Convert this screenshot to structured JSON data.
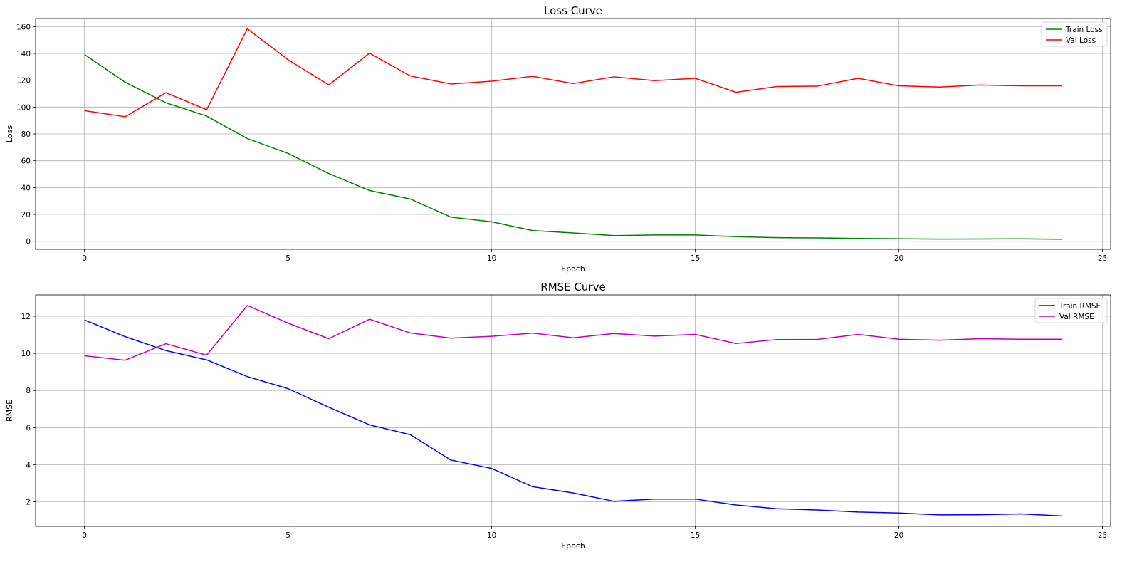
{
  "chart_data": [
    {
      "type": "line",
      "title": "Loss Curve",
      "xlabel": "Epoch",
      "ylabel": "Loss",
      "xlim": [
        -1.2,
        25.2
      ],
      "ylim": [
        -6,
        166
      ],
      "xticks": [
        0,
        5,
        10,
        15,
        20,
        25
      ],
      "yticks": [
        0,
        20,
        40,
        60,
        80,
        100,
        120,
        140,
        160
      ],
      "grid": true,
      "legend": "upper right",
      "x": [
        0,
        1,
        2,
        3,
        4,
        5,
        6,
        7,
        8,
        9,
        10,
        11,
        12,
        13,
        14,
        15,
        16,
        17,
        18,
        19,
        20,
        21,
        22,
        23,
        24
      ],
      "series": [
        {
          "name": "Train Loss",
          "color": "#008000",
          "values": [
            139.2,
            118.5,
            103.2,
            93.3,
            76.5,
            65.5,
            50.5,
            37.8,
            31.5,
            18.0,
            14.5,
            8.0,
            6.2,
            4.2,
            4.7,
            4.7,
            3.4,
            2.7,
            2.5,
            2.1,
            1.9,
            1.6,
            1.7,
            1.8,
            1.5
          ]
        },
        {
          "name": "Val Loss",
          "color": "#ff0000",
          "values": [
            97.3,
            92.8,
            110.7,
            98.0,
            158.4,
            135.3,
            116.5,
            140.2,
            123.2,
            117.2,
            119.3,
            122.9,
            117.5,
            122.5,
            119.7,
            121.4,
            111.0,
            115.3,
            115.6,
            121.4,
            115.8,
            114.9,
            116.4,
            115.8,
            115.8
          ]
        }
      ]
    },
    {
      "type": "line",
      "title": "RMSE Curve",
      "xlabel": "Epoch",
      "ylabel": "RMSE",
      "xlim": [
        -1.2,
        25.2
      ],
      "ylim": [
        0.68,
        13.15
      ],
      "xticks": [
        0,
        5,
        10,
        15,
        20,
        25
      ],
      "yticks": [
        2,
        4,
        6,
        8,
        10,
        12
      ],
      "grid": true,
      "legend": "upper right",
      "x": [
        0,
        1,
        2,
        3,
        4,
        5,
        6,
        7,
        8,
        9,
        10,
        11,
        12,
        13,
        14,
        15,
        16,
        17,
        18,
        19,
        20,
        21,
        22,
        23,
        24
      ],
      "series": [
        {
          "name": "Train RMSE",
          "color": "#0000ff",
          "values": [
            11.8,
            10.9,
            10.15,
            9.65,
            8.75,
            8.1,
            7.1,
            6.15,
            5.62,
            4.25,
            3.8,
            2.82,
            2.48,
            2.03,
            2.15,
            2.15,
            1.83,
            1.63,
            1.56,
            1.45,
            1.4,
            1.3,
            1.31,
            1.35,
            1.24
          ]
        },
        {
          "name": "Val RMSE",
          "color": "#bf00bf",
          "values": [
            9.87,
            9.63,
            10.52,
            9.9,
            12.58,
            11.63,
            10.79,
            11.84,
            11.1,
            10.82,
            10.92,
            11.09,
            10.84,
            11.07,
            10.93,
            11.02,
            10.53,
            10.74,
            10.75,
            11.02,
            10.76,
            10.71,
            10.79,
            10.76,
            10.76
          ]
        }
      ]
    }
  ]
}
